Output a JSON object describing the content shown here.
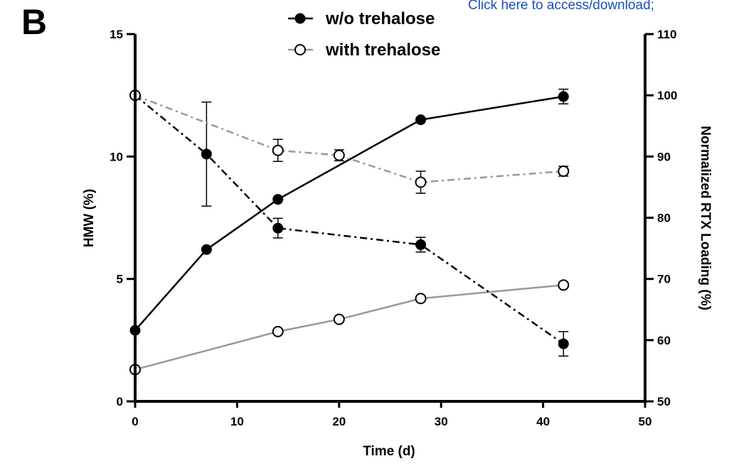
{
  "panel_label": "B",
  "download_link": "Click here to access/download;",
  "colors": {
    "black": "#000000",
    "gray": "#999999"
  },
  "chart_data": {
    "type": "line",
    "xlabel": "Time (d)",
    "ylabel_left": "HMW (%)",
    "ylabel_right": "Normalized RTX Loading (%)",
    "xlim": [
      0,
      50
    ],
    "ylim_left": [
      0,
      15
    ],
    "ylim_right": [
      50,
      110
    ],
    "x_ticks": [
      0,
      10,
      20,
      30,
      40,
      50
    ],
    "y_left_ticks": [
      0,
      5,
      10,
      15
    ],
    "y_right_ticks": [
      50,
      60,
      70,
      80,
      90,
      100,
      110
    ],
    "legend": [
      {
        "label": "w/o trehalose",
        "marker": "filled-circle",
        "color": "#000000"
      },
      {
        "label": "with trehalose",
        "marker": "open-circle",
        "color": "#999999"
      }
    ],
    "series": [
      {
        "name": "w/o trehalose",
        "metric": "HMW",
        "axis": "left",
        "color": "#000000",
        "marker": "filled",
        "line": "solid",
        "x": [
          0,
          7,
          14,
          28,
          42
        ],
        "y": [
          2.9,
          6.2,
          8.25,
          11.5,
          12.45
        ],
        "err": [
          0,
          0,
          0,
          0,
          0.3
        ]
      },
      {
        "name": "with trehalose",
        "metric": "HMW",
        "axis": "left",
        "color": "#999999",
        "marker": "open",
        "line": "solid",
        "x": [
          0,
          14,
          20,
          28,
          42
        ],
        "y": [
          1.3,
          2.85,
          3.35,
          4.2,
          4.75
        ],
        "err": [
          0,
          0,
          0,
          0,
          0
        ]
      },
      {
        "name": "w/o trehalose",
        "metric": "RTX loading",
        "axis": "right",
        "color": "#000000",
        "marker": "filled",
        "line": "dashdot",
        "x": [
          0,
          7,
          14,
          28,
          42
        ],
        "y": [
          100,
          90.4,
          78.3,
          75.6,
          59.4
        ],
        "err": [
          0,
          8.5,
          1.6,
          1.2,
          2.0
        ]
      },
      {
        "name": "with trehalose",
        "metric": "RTX loading",
        "axis": "right",
        "color": "#999999",
        "marker": "open",
        "line": "dashdot",
        "x": [
          0,
          14,
          20,
          28,
          42
        ],
        "y": [
          100,
          91.0,
          90.2,
          85.8,
          87.6
        ],
        "err": [
          0,
          1.8,
          0.9,
          1.8,
          0.8
        ]
      }
    ]
  }
}
